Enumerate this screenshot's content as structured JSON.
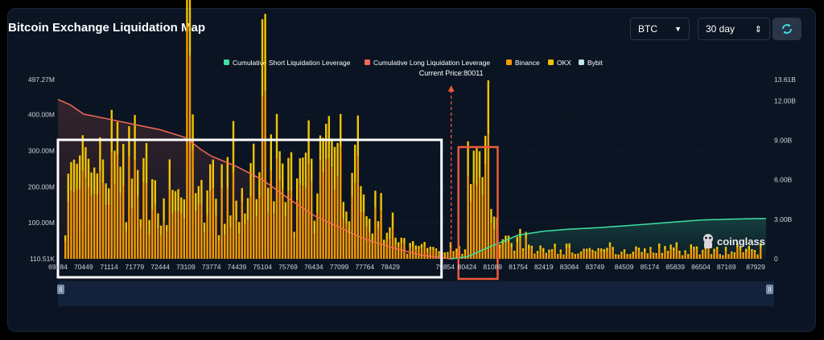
{
  "header": {
    "title": "Bitcoin Exchange Liquidation Map",
    "symbol_value": "BTC",
    "range_value": "30 day",
    "refresh_icon": "refresh-icon",
    "symbol_arrow_icon": "triangle-down-icon",
    "range_arrow_icon": "updown-arrows-icon"
  },
  "watermark": {
    "text": "coinglass",
    "icon": "coinglass-logo-icon"
  },
  "colors": {
    "short_cum": "#3ee0a3",
    "long_cum": "#f46a55",
    "binance": "#f59a00",
    "okx": "#f2c400",
    "bybit": "#b9e6e6",
    "highlight_white": "#ffffff",
    "highlight_orange": "#ef5a3a"
  },
  "chart_data": {
    "type": "bar",
    "current_price_label": "Current Price:80011",
    "current_price": 80011,
    "legend": [
      {
        "key": "short_cum",
        "label": "Cumulative Short Liquidation Leverage",
        "color": "#3ee0a3"
      },
      {
        "key": "long_cum",
        "label": "Cumulative Long Liquidation Leverage",
        "color": "#f46a55"
      },
      {
        "key": "binance",
        "label": "Binance",
        "color": "#f59a00"
      },
      {
        "key": "okx",
        "label": "OKX",
        "color": "#f2c400"
      },
      {
        "key": "bybit",
        "label": "Bybit",
        "color": "#b9e6e6"
      }
    ],
    "y_left_ticks": [
      "497.27M",
      "400.00M",
      "300.00M",
      "200.00M",
      "100.00M",
      "110.51K"
    ],
    "y_left_values": [
      497.27,
      400,
      300,
      200,
      100,
      0.11
    ],
    "y_right_ticks": [
      "13.61B",
      "12.00B",
      "9.00B",
      "6.00B",
      "3.00B",
      "0"
    ],
    "y_right_values": [
      13.61,
      12,
      9,
      6,
      3,
      0
    ],
    "x_ticks": [
      "69784",
      "70449",
      "71114",
      "71779",
      "72444",
      "73109",
      "73774",
      "74439",
      "75104",
      "75769",
      "76434",
      "77099",
      "77764",
      "78429",
      "79854",
      "80424",
      "81089",
      "81754",
      "82419",
      "83084",
      "83749",
      "84509",
      "85174",
      "85839",
      "86504",
      "87169",
      "87929"
    ],
    "x_range": [
      69784,
      88200
    ],
    "left_max": 497.27,
    "right_max": 13.61,
    "cumulative_long": [
      [
        69784,
        12.1
      ],
      [
        70100,
        11.7
      ],
      [
        70449,
        11.0
      ],
      [
        71114,
        10.6
      ],
      [
        71779,
        10.2
      ],
      [
        72444,
        9.8
      ],
      [
        73109,
        9.2
      ],
      [
        73500,
        8.3
      ],
      [
        73774,
        7.8
      ],
      [
        74439,
        7.0
      ],
      [
        75104,
        6.0
      ],
      [
        75769,
        4.6
      ],
      [
        76434,
        3.3
      ],
      [
        77099,
        2.4
      ],
      [
        77764,
        1.5
      ],
      [
        78429,
        0.9
      ],
      [
        79200,
        0.3
      ],
      [
        80011,
        0.0
      ]
    ],
    "cumulative_short": [
      [
        80011,
        0.0
      ],
      [
        80424,
        0.15
      ],
      [
        81089,
        1.0
      ],
      [
        81754,
        1.8
      ],
      [
        82419,
        2.1
      ],
      [
        83084,
        2.25
      ],
      [
        83749,
        2.35
      ],
      [
        84509,
        2.5
      ],
      [
        85174,
        2.65
      ],
      [
        85839,
        2.8
      ],
      [
        86504,
        2.95
      ],
      [
        87169,
        3.0
      ],
      [
        87929,
        3.05
      ],
      [
        88200,
        3.05
      ]
    ],
    "highlights": [
      {
        "from": 69784,
        "to": 79760,
        "color": "white"
      },
      {
        "from": 80200,
        "to": 81220,
        "color": "orange"
      }
    ]
  }
}
